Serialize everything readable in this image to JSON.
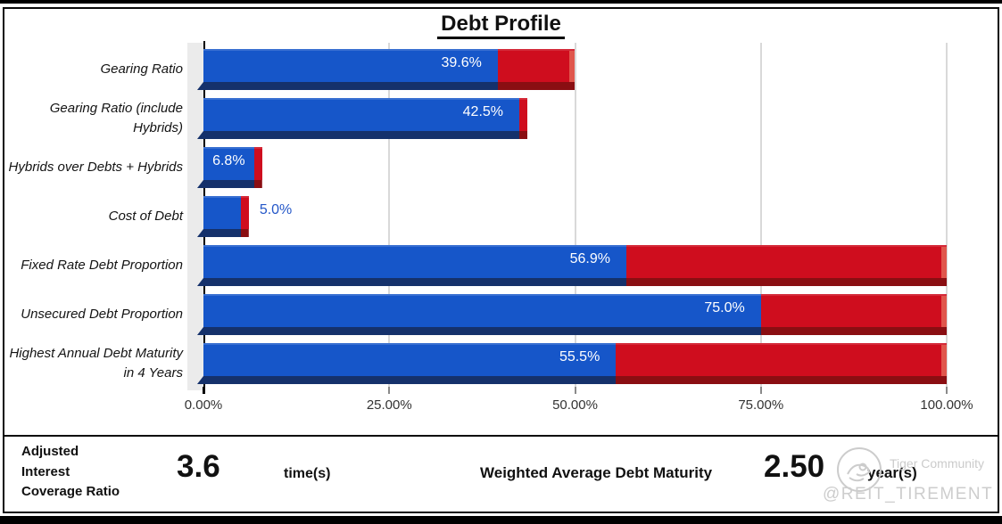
{
  "chart_data": {
    "type": "bar",
    "orientation": "horizontal",
    "title": "Debt Profile",
    "xlabel": "",
    "ylabel": "",
    "xlim": [
      0,
      100
    ],
    "grid": true,
    "legend": "none",
    "x_ticks": [
      {
        "label": "0.00%",
        "value": 0
      },
      {
        "label": "25.00%",
        "value": 25
      },
      {
        "label": "50.00%",
        "value": 50
      },
      {
        "label": "75.00%",
        "value": 75
      },
      {
        "label": "100.00%",
        "value": 100
      }
    ],
    "series_colors": {
      "value_bar": "#1656c9",
      "remainder_bar": "#cf0d1e"
    },
    "bars": [
      {
        "category": "Gearing Ratio",
        "value": 39.6,
        "label": "39.6%",
        "label_style": "inside-white",
        "red_to": 50.0
      },
      {
        "category": "Gearing Ratio (include Hybrids)",
        "value": 42.5,
        "label": "42.5%",
        "label_style": "inside-white",
        "red_to": 43.6
      },
      {
        "category": "Hybrids over Debts + Hybrids",
        "value": 6.8,
        "label": "6.8%",
        "label_style": "inside-white-center",
        "red_to": 7.9
      },
      {
        "category": "Cost of Debt",
        "value": 5.0,
        "label": "5.0%",
        "label_style": "outside-blue",
        "red_to": 6.1
      },
      {
        "category": "Fixed Rate Debt Proportion",
        "value": 56.9,
        "label": "56.9%",
        "label_style": "inside-white",
        "red_to": 100.0
      },
      {
        "category": "Unsecured Debt Proportion",
        "value": 75.0,
        "label": "75.0%",
        "label_style": "inside-white",
        "red_to": 100.0
      },
      {
        "category": "Highest Annual Debt Maturity in 4 Years",
        "value": 55.5,
        "label": "55.5%",
        "label_style": "inside-white",
        "red_to": 100.0
      }
    ]
  },
  "footer": {
    "metric1": {
      "label": "Adjusted\nInterest\nCoverage Ratio",
      "value": "3.6",
      "unit": "time(s)"
    },
    "metric2": {
      "label": "Weighted Average Debt Maturity",
      "value": "2.50",
      "unit": "year(s)"
    }
  },
  "watermark": {
    "brand": "Tiger Community",
    "handle": "@REIT_TIREMENT"
  }
}
